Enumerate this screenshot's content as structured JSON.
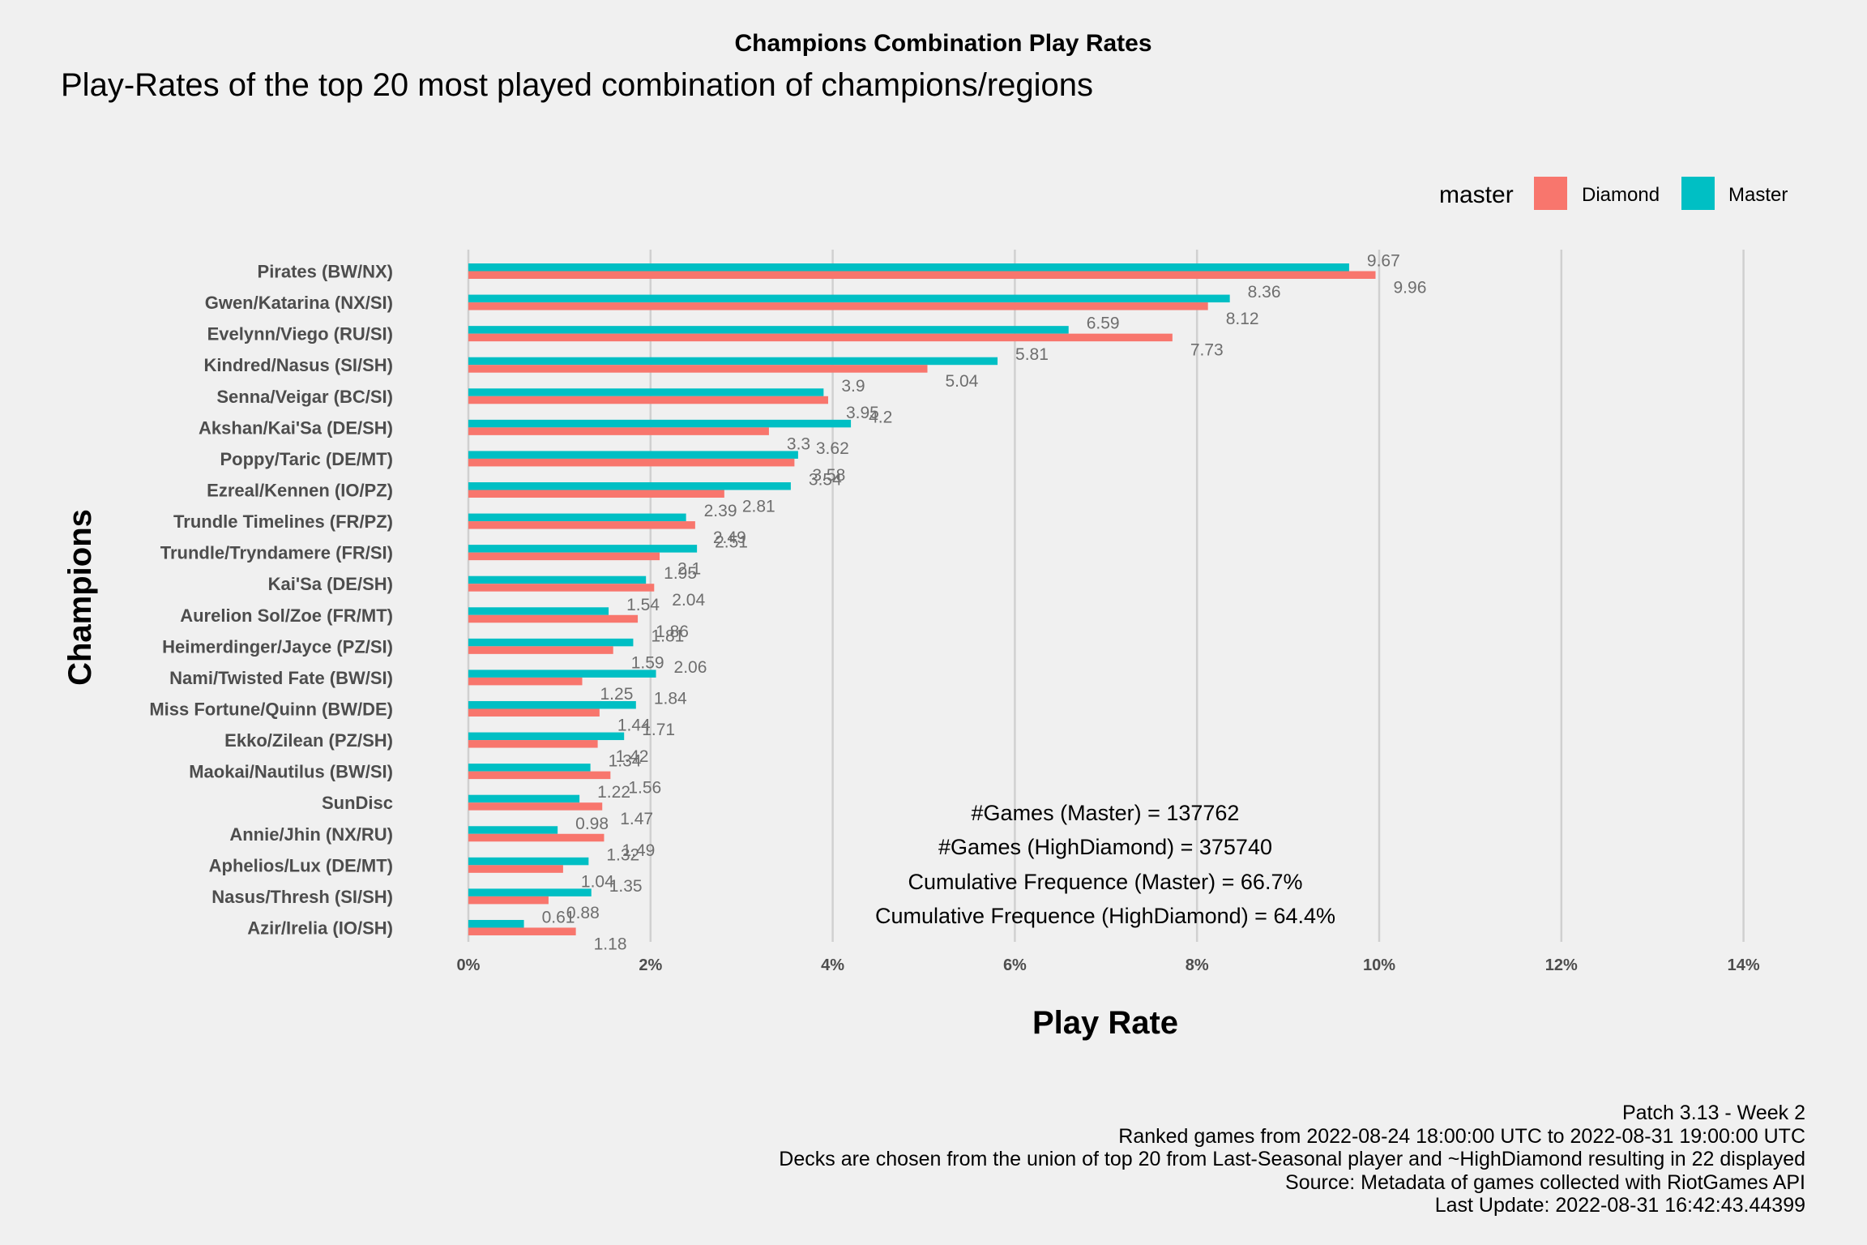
{
  "chart_data": {
    "type": "bar",
    "orientation": "horizontal",
    "title": "Champions Combination Play Rates",
    "subtitle": "Play-Rates of the top 20 most played combination of champions/regions",
    "xlabel": "Play Rate",
    "ylabel": "Champions",
    "xlim": [
      0,
      14
    ],
    "xticks": [
      "0%",
      "2%",
      "4%",
      "6%",
      "8%",
      "10%",
      "12%",
      "14%"
    ],
    "grid": "vertical",
    "legend": {
      "title": "master",
      "placement": "top-right",
      "entries": [
        {
          "name": "Diamond",
          "color": "#F8766D"
        },
        {
          "name": "Master",
          "color": "#00BFC4"
        }
      ]
    },
    "categories": [
      "Pirates (BW/NX)",
      "Gwen/Katarina (NX/SI)",
      "Evelynn/Viego (RU/SI)",
      "Kindred/Nasus (SI/SH)",
      "Senna/Veigar (BC/SI)",
      "Akshan/Kai'Sa (DE/SH)",
      "Poppy/Taric (DE/MT)",
      "Ezreal/Kennen (IO/PZ)",
      "Trundle Timelines (FR/PZ)",
      "Trundle/Tryndamere (FR/SI)",
      "Kai'Sa (DE/SH)",
      "Aurelion Sol/Zoe (FR/MT)",
      "Heimerdinger/Jayce (PZ/SI)",
      "Nami/Twisted Fate (BW/SI)",
      "Miss Fortune/Quinn (BW/DE)",
      "Ekko/Zilean (PZ/SH)",
      "Maokai/Nautilus (BW/SI)",
      "SunDisc",
      "Annie/Jhin (NX/RU)",
      "Aphelios/Lux (DE/MT)",
      "Nasus/Thresh (SI/SH)",
      "Azir/Irelia (IO/SH)"
    ],
    "series": [
      {
        "name": "Master",
        "color": "#00BFC4",
        "values": [
          9.67,
          8.36,
          6.59,
          5.81,
          3.9,
          4.2,
          3.62,
          3.54,
          2.39,
          2.51,
          1.95,
          1.54,
          1.81,
          2.06,
          1.84,
          1.71,
          1.34,
          1.22,
          0.98,
          1.32,
          1.35,
          0.61
        ],
        "labels": [
          "9.67",
          "8.36",
          "6.59",
          "5.81",
          "3.9",
          "4.2",
          "3.62",
          "3.54",
          "2.39",
          "2.51",
          "1.95",
          "1.54",
          "1.81",
          "2.06",
          "1.84",
          "1.71",
          "1.34",
          "1.22",
          "0.98",
          "1.32",
          "1.35",
          "0.61"
        ]
      },
      {
        "name": "Diamond",
        "color": "#F8766D",
        "values": [
          9.96,
          8.12,
          7.73,
          5.04,
          3.95,
          3.3,
          3.58,
          2.81,
          2.49,
          2.1,
          2.04,
          1.86,
          1.59,
          1.25,
          1.44,
          1.42,
          1.56,
          1.47,
          1.49,
          1.04,
          0.88,
          1.18
        ],
        "labels": [
          "9.96",
          "8.12",
          "7.73",
          "5.04",
          "3.95",
          "3.3",
          "3.58",
          "2.81",
          "2.49",
          "2.1",
          "2.04",
          "1.86",
          "1.59",
          "1.25",
          "1.44",
          "1.42",
          "1.56",
          "1.47",
          "1.49",
          "1.04",
          "0.88",
          "1.18"
        ]
      }
    ],
    "annotations": [
      "#Games (Master) = 137762",
      "#Games (HighDiamond) = 375740",
      "Cumulative Frequence (Master) = 66.7%",
      "Cumulative Frequence (HighDiamond) = 64.4%"
    ],
    "caption": [
      "Patch 3.13 - Week 2",
      "Ranked games from 2022-08-24 18:00:00 UTC to 2022-08-31 19:00:00 UTC",
      "Decks are chosen from the union of top 20 from Last-Seasonal player and ~HighDiamond resulting in 22 displayed",
      "Source: Metadata of games collected with RiotGames API",
      "Last Update: 2022-08-31 16:42:43.44399"
    ]
  }
}
